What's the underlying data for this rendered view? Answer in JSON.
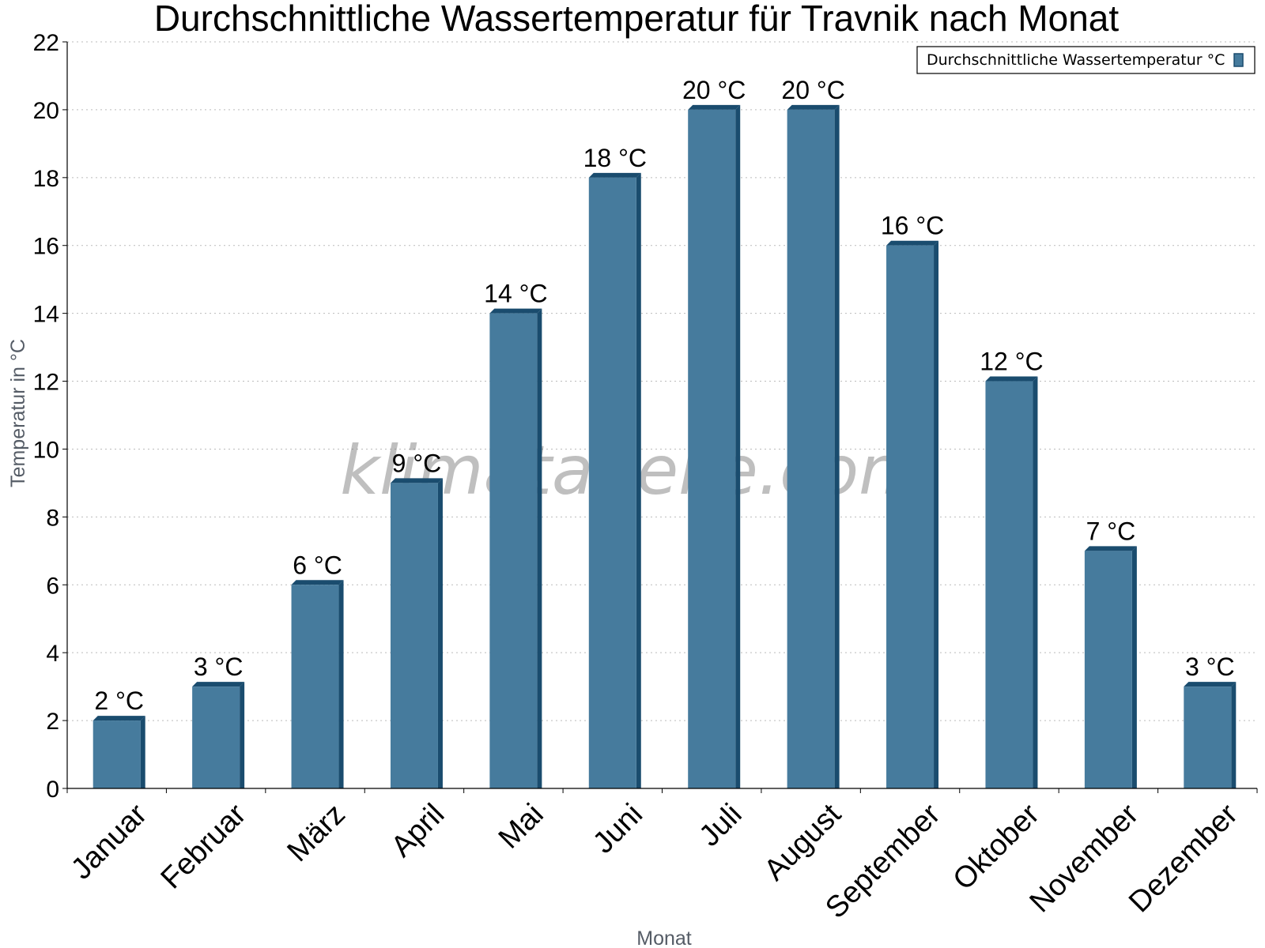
{
  "chart_data": {
    "type": "bar",
    "title": "Durchschnittliche Wassertemperatur für Travnik nach Monat",
    "xlabel": "Monat",
    "ylabel": "Temperatur in °C",
    "categories": [
      "Januar",
      "Februar",
      "März",
      "April",
      "Mai",
      "Juni",
      "Juli",
      "August",
      "September",
      "Oktober",
      "November",
      "Dezember"
    ],
    "series": [
      {
        "name": "Durchschnittliche Wassertemperatur °C",
        "values": [
          2,
          3,
          6,
          9,
          14,
          18,
          20,
          20,
          16,
          12,
          7,
          3
        ],
        "data_labels": [
          "2 °C",
          "3 °C",
          "6 °C",
          "9 °C",
          "14 °C",
          "18 °C",
          "20 °C",
          "20 °C",
          "16 °C",
          "12 °C",
          "7 °C",
          "3 °C"
        ]
      }
    ],
    "ylim": [
      0,
      22
    ],
    "yticks": [
      0,
      2,
      4,
      6,
      8,
      10,
      12,
      14,
      16,
      18,
      20,
      22
    ],
    "grid": true,
    "legend_position": "top-right",
    "colors": {
      "bar": "#467b9d",
      "bar_side": "#1a4c6e",
      "grid": "#bbbbbb",
      "axis": "#000000"
    }
  },
  "watermark": "klimatabelle.com"
}
